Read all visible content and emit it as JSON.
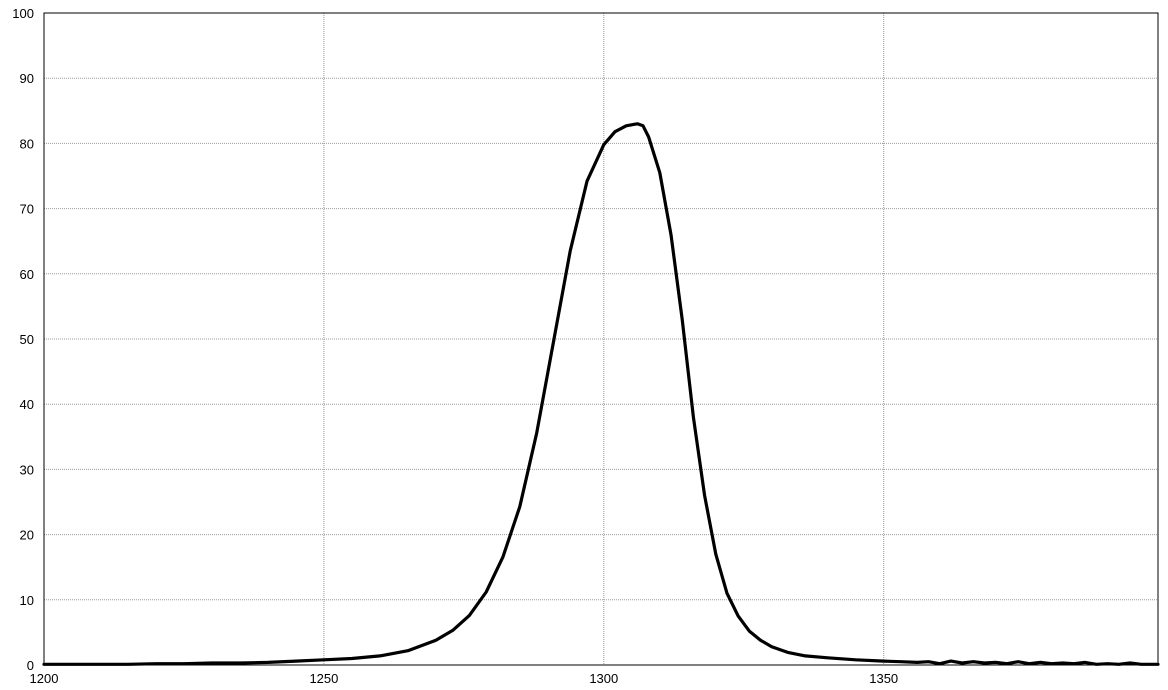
{
  "chart_data": {
    "type": "line",
    "title": "",
    "xlabel": "",
    "ylabel": "",
    "xlim": [
      1200,
      1399
    ],
    "ylim": [
      0,
      100
    ],
    "grid": true,
    "x_ticks": [
      1200,
      1250,
      1300,
      1350
    ],
    "y_ticks": [
      0,
      10,
      20,
      30,
      40,
      50,
      60,
      70,
      80,
      90,
      100
    ],
    "series": [
      {
        "color": "#000000",
        "x": [
          1200,
          1205,
          1210,
          1215,
          1220,
          1225,
          1230,
          1235,
          1240,
          1245,
          1250,
          1255,
          1260,
          1265,
          1270,
          1273,
          1276,
          1279,
          1282,
          1285,
          1288,
          1291,
          1294,
          1297,
          1300,
          1302,
          1304,
          1306,
          1307,
          1308,
          1310,
          1312,
          1314,
          1316,
          1318,
          1320,
          1322,
          1324,
          1326,
          1328,
          1330,
          1333,
          1336,
          1340,
          1345,
          1350,
          1353,
          1356,
          1358,
          1360,
          1362,
          1364,
          1366,
          1368,
          1370,
          1372,
          1374,
          1376,
          1378,
          1380,
          1382,
          1384,
          1386,
          1388,
          1390,
          1392,
          1394,
          1396,
          1399
        ],
        "y": [
          0.1,
          0.1,
          0.1,
          0.1,
          0.2,
          0.2,
          0.3,
          0.3,
          0.4,
          0.6,
          0.8,
          1.0,
          1.4,
          2.2,
          3.8,
          5.3,
          7.6,
          11.2,
          16.6,
          24.3,
          35.5,
          49.5,
          63.5,
          74.2,
          79.8,
          81.8,
          82.7,
          83.0,
          82.7,
          81.0,
          75.5,
          66.0,
          53.0,
          38.0,
          26.0,
          17.0,
          11.0,
          7.5,
          5.2,
          3.8,
          2.8,
          1.9,
          1.4,
          1.1,
          0.8,
          0.6,
          0.5,
          0.4,
          0.5,
          0.2,
          0.6,
          0.3,
          0.5,
          0.3,
          0.4,
          0.2,
          0.5,
          0.2,
          0.4,
          0.2,
          0.3,
          0.2,
          0.4,
          0.1,
          0.2,
          0.1,
          0.3,
          0.1,
          0.1
        ]
      }
    ]
  }
}
